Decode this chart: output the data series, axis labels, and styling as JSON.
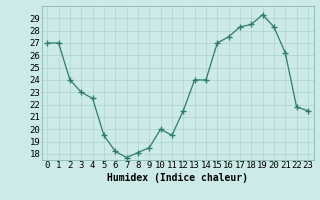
{
  "x": [
    0,
    1,
    2,
    3,
    4,
    5,
    6,
    7,
    8,
    9,
    10,
    11,
    12,
    13,
    14,
    15,
    16,
    17,
    18,
    19,
    20,
    21,
    22,
    23
  ],
  "y": [
    27,
    27,
    24,
    23,
    22.5,
    19.5,
    18.2,
    17.7,
    18.1,
    18.5,
    20.0,
    19.5,
    21.5,
    24.0,
    24.0,
    27.0,
    27.5,
    28.3,
    28.5,
    29.3,
    28.3,
    26.2,
    21.8,
    21.5
  ],
  "line_color": "#2e7d6e",
  "marker": "+",
  "marker_size": 4,
  "bg_color": "#cceae7",
  "grid_color": "#b0d4d0",
  "xlabel": "Humidex (Indice chaleur)",
  "ylabel": "",
  "ylim": [
    17.5,
    30.0
  ],
  "xlim": [
    -0.5,
    23.5
  ],
  "yticks": [
    18,
    19,
    20,
    21,
    22,
    23,
    24,
    25,
    26,
    27,
    28,
    29
  ],
  "xticks": [
    0,
    1,
    2,
    3,
    4,
    5,
    6,
    7,
    8,
    9,
    10,
    11,
    12,
    13,
    14,
    15,
    16,
    17,
    18,
    19,
    20,
    21,
    22,
    23
  ],
  "label_fontsize": 7,
  "tick_fontsize": 6.5
}
